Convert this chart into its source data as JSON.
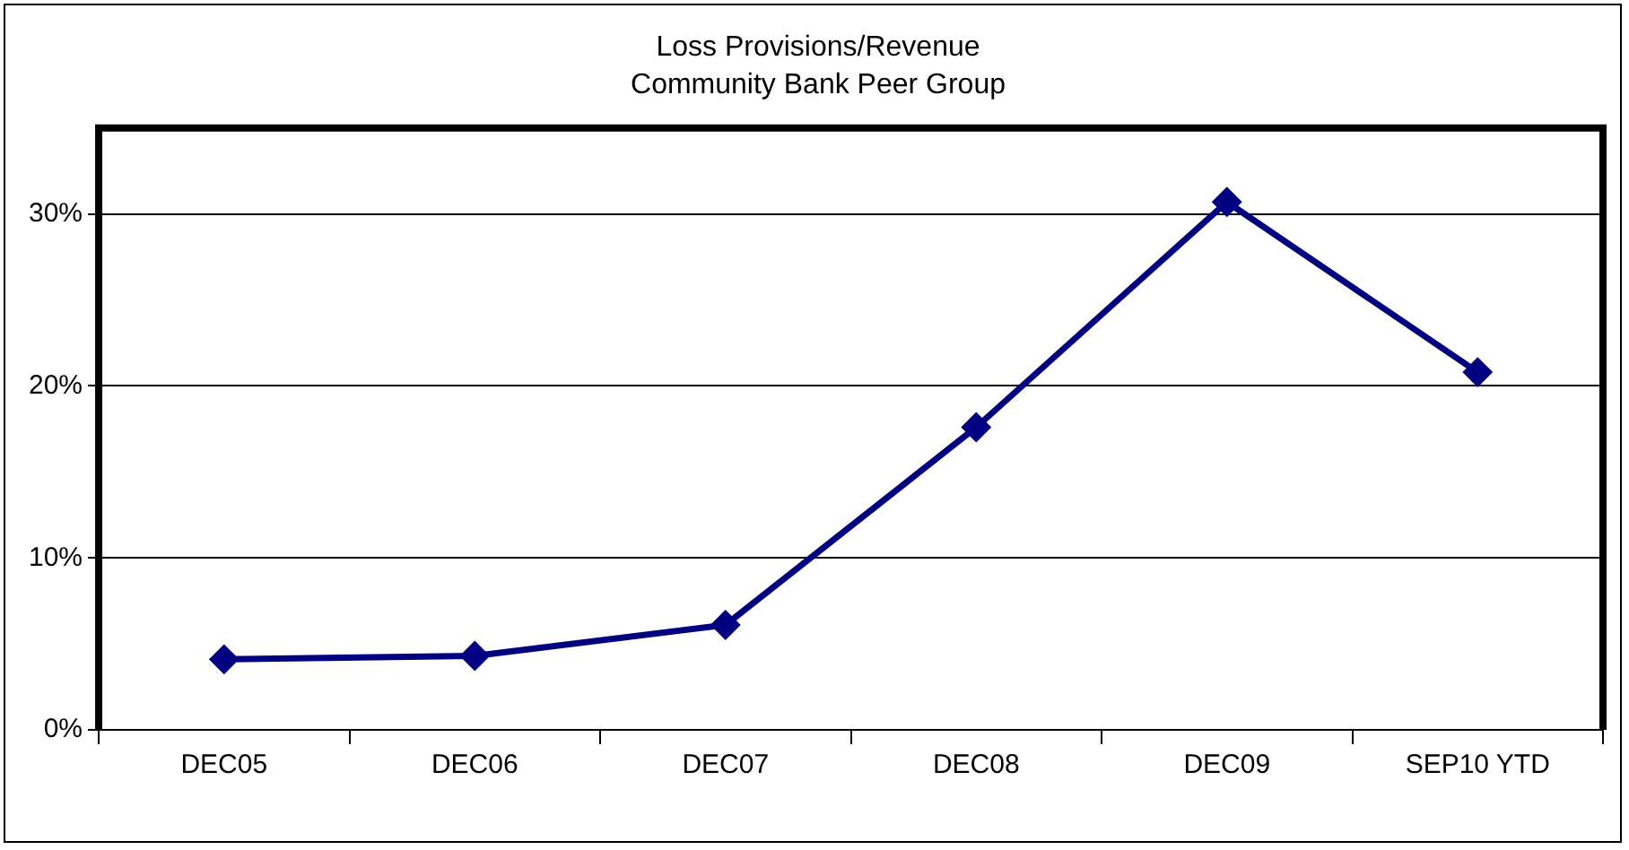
{
  "chart_data": {
    "type": "line",
    "title": "Loss Provisions/Revenue",
    "subtitle": "Community Bank Peer Group",
    "categories": [
      "DEC05",
      "DEC06",
      "DEC07",
      "DEC08",
      "DEC09",
      "SEP10 YTD"
    ],
    "series": [
      {
        "color": "#000080",
        "values": [
          4.1,
          4.3,
          6.1,
          17.6,
          30.7,
          20.8
        ]
      }
    ],
    "ylim": [
      0,
      35
    ],
    "yticks": [
      {
        "value": 0,
        "label": "0%"
      },
      {
        "value": 10,
        "label": "10%"
      },
      {
        "value": 20,
        "label": "20%"
      },
      {
        "value": 30,
        "label": "30%"
      }
    ],
    "grid": "y",
    "legend": false,
    "marker": "diamond",
    "line_style": "solid"
  }
}
